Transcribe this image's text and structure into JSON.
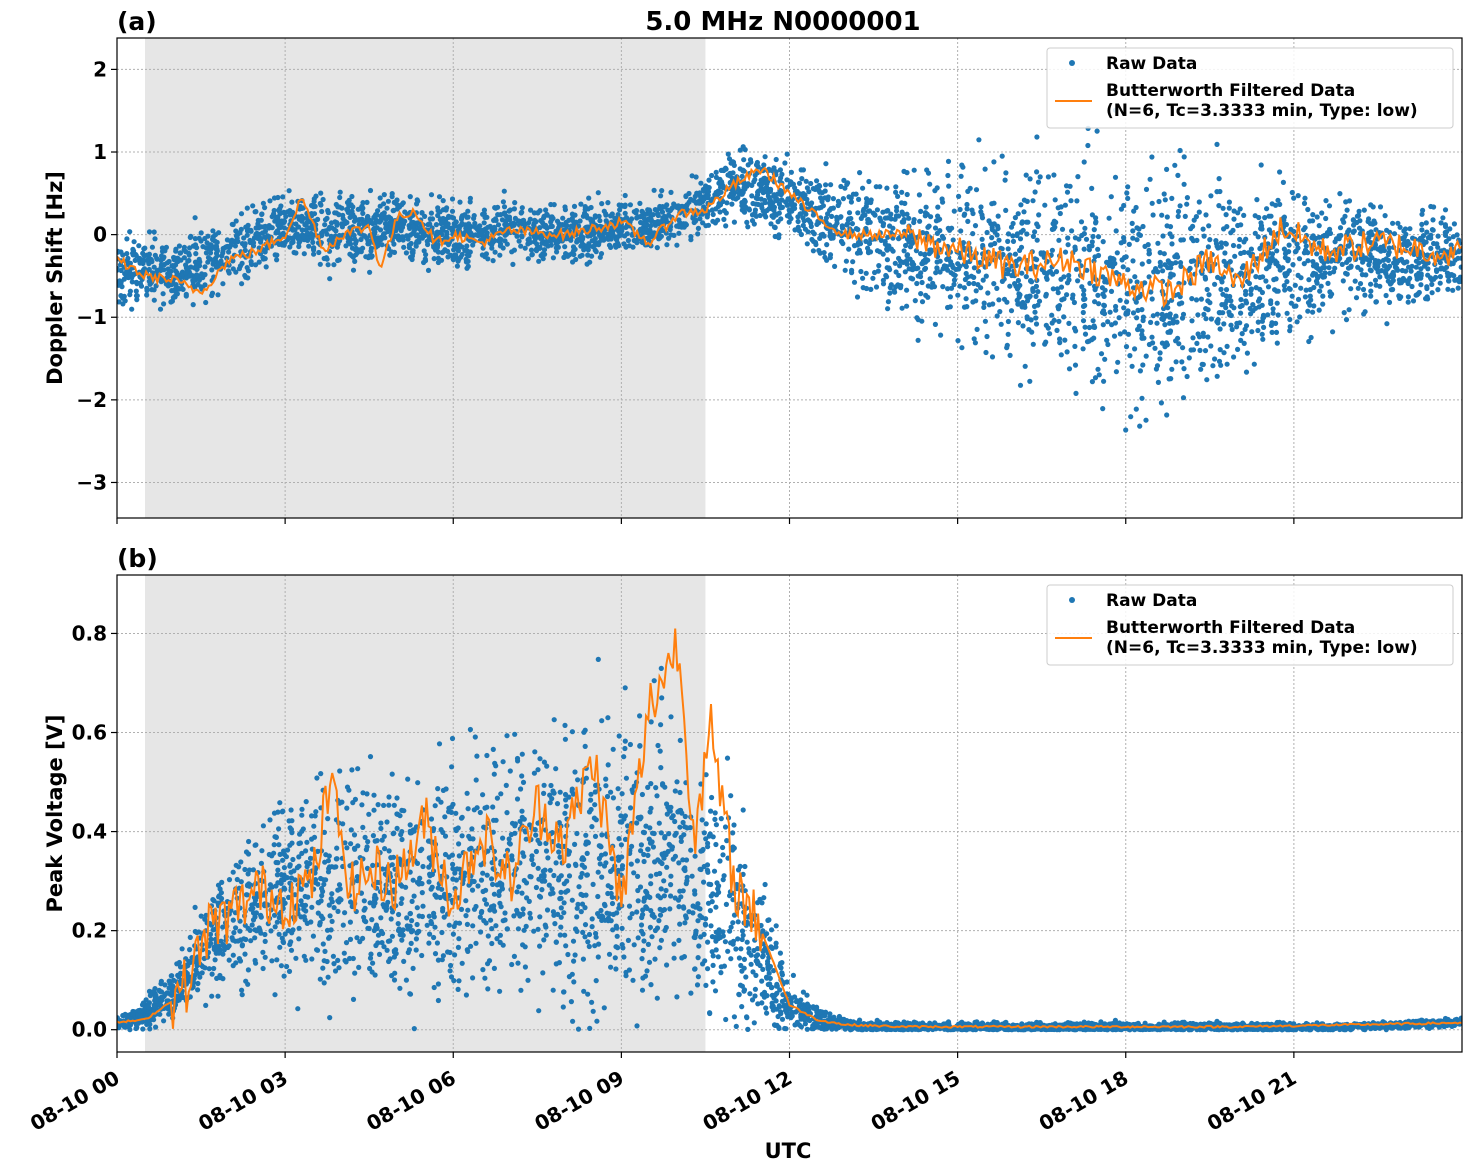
{
  "title": "5.0 MHz N0000001",
  "x_axis_label": "UTC",
  "colors": {
    "raw": "#1f77b4",
    "filtered": "#ff7f0e",
    "shade": "#e6e6e6"
  },
  "legend": {
    "raw": "Raw Data",
    "filtered_line1": "Butterworth Filtered Data",
    "filtered_line2": "(N=6, Tc=3.3333 min, Type: low)"
  },
  "chart_data": [
    {
      "panel_label": "(a)",
      "type": "scatter",
      "ylabel": "Doppler Shift [Hz]",
      "xlim_hours": [
        0,
        24
      ],
      "ylim": [
        -3.43,
        2.38
      ],
      "yticks": [
        2,
        1,
        0,
        -1,
        -2,
        -3
      ],
      "ytick_labels": [
        "2",
        "1",
        "0",
        "−1",
        "−2",
        "−3"
      ],
      "xticks_hours": [
        0,
        3,
        6,
        9,
        12,
        15,
        18,
        21
      ],
      "shaded_region_hours": [
        0.5,
        10.5
      ],
      "grid": true,
      "legend_position": "top-right",
      "series": [
        {
          "name": "Raw Data",
          "style": "points",
          "points": [
            [
              0,
              -0.4
            ],
            [
              1,
              -0.5
            ],
            [
              2,
              -0.2
            ],
            [
              3,
              0.1
            ],
            [
              4,
              0.0
            ],
            [
              5,
              0.1
            ],
            [
              6,
              0.0
            ],
            [
              7,
              0.05
            ],
            [
              8,
              0.0
            ],
            [
              9,
              0.1
            ],
            [
              10,
              0.2
            ],
            [
              11,
              0.6
            ],
            [
              12,
              0.4
            ],
            [
              13,
              0.1
            ],
            [
              14,
              -0.1
            ],
            [
              15,
              -0.2
            ],
            [
              16,
              -0.4
            ],
            [
              17,
              -0.5
            ],
            [
              18,
              -0.6
            ],
            [
              19,
              -0.6
            ],
            [
              20,
              -0.5
            ],
            [
              21,
              -0.3
            ],
            [
              22,
              -0.2
            ],
            [
              23,
              -0.3
            ],
            [
              24,
              -0.3
            ]
          ],
          "spread": [
            [
              0,
              0.4
            ],
            [
              2,
              0.4
            ],
            [
              4,
              0.4
            ],
            [
              6,
              0.35
            ],
            [
              8,
              0.3
            ],
            [
              10,
              0.3
            ],
            [
              11,
              0.4
            ],
            [
              12,
              0.4
            ],
            [
              13,
              0.6
            ],
            [
              15,
              1.0
            ],
            [
              17,
              1.2
            ],
            [
              18.5,
              1.5
            ],
            [
              20,
              1.1
            ],
            [
              22,
              0.7
            ],
            [
              24,
              0.5
            ]
          ]
        },
        {
          "name": "Butterworth Filtered Data\n(N=6, Tc=3.3333 min, Type: low)",
          "style": "line",
          "points": [
            [
              0,
              -0.3
            ],
            [
              0.5,
              -0.5
            ],
            [
              1,
              -0.55
            ],
            [
              1.5,
              -0.7
            ],
            [
              2,
              -0.3
            ],
            [
              2.5,
              -0.2
            ],
            [
              3,
              0.0
            ],
            [
              3.3,
              0.45
            ],
            [
              3.7,
              -0.2
            ],
            [
              4,
              0.0
            ],
            [
              4.5,
              0.1
            ],
            [
              4.7,
              -0.4
            ],
            [
              5,
              0.2
            ],
            [
              5.3,
              0.3
            ],
            [
              5.7,
              -0.1
            ],
            [
              6,
              0.0
            ],
            [
              6.5,
              -0.1
            ],
            [
              7,
              0.05
            ],
            [
              8,
              0.0
            ],
            [
              9,
              0.15
            ],
            [
              9.5,
              -0.1
            ],
            [
              10,
              0.25
            ],
            [
              10.5,
              0.3
            ],
            [
              11,
              0.6
            ],
            [
              11.5,
              0.8
            ],
            [
              12,
              0.5
            ],
            [
              12.5,
              0.2
            ],
            [
              13,
              0.0
            ],
            [
              14,
              0.0
            ],
            [
              15,
              -0.2
            ],
            [
              16,
              -0.4
            ],
            [
              17,
              -0.3
            ],
            [
              18,
              -0.6
            ],
            [
              18.8,
              -0.7
            ],
            [
              19.5,
              -0.3
            ],
            [
              20,
              -0.6
            ],
            [
              20.8,
              0.1
            ],
            [
              21.5,
              -0.2
            ],
            [
              22.5,
              -0.1
            ],
            [
              24,
              -0.25
            ]
          ]
        }
      ]
    },
    {
      "panel_label": "(b)",
      "type": "scatter",
      "ylabel": "Peak Voltage [V]",
      "xlim_hours": [
        0,
        24
      ],
      "ylim": [
        -0.045,
        0.918
      ],
      "yticks": [
        0.0,
        0.2,
        0.4,
        0.6,
        0.8
      ],
      "ytick_labels": [
        "0.0",
        "0.2",
        "0.4",
        "0.6",
        "0.8"
      ],
      "xticks_hours": [
        0,
        3,
        6,
        9,
        12,
        15,
        18,
        21
      ],
      "xtick_labels": [
        "08-10 00",
        "08-10 03",
        "08-10 06",
        "08-10 09",
        "08-10 12",
        "08-10 15",
        "08-10 18",
        "08-10 21"
      ],
      "shaded_region_hours": [
        0.5,
        10.5
      ],
      "grid": true,
      "legend_position": "top-right",
      "series": [
        {
          "name": "Raw Data",
          "style": "points",
          "points": [
            [
              0,
              0.015
            ],
            [
              0.5,
              0.03
            ],
            [
              1,
              0.07
            ],
            [
              1.5,
              0.15
            ],
            [
              2,
              0.22
            ],
            [
              3,
              0.28
            ],
            [
              4,
              0.3
            ],
            [
              5,
              0.28
            ],
            [
              6,
              0.3
            ],
            [
              7,
              0.33
            ],
            [
              8,
              0.32
            ],
            [
              9,
              0.35
            ],
            [
              10,
              0.35
            ],
            [
              10.5,
              0.3
            ],
            [
              11,
              0.25
            ],
            [
              11.5,
              0.15
            ],
            [
              12,
              0.05
            ],
            [
              12.5,
              0.02
            ],
            [
              13,
              0.01
            ],
            [
              14,
              0.005
            ],
            [
              18,
              0.005
            ],
            [
              22,
              0.005
            ],
            [
              24,
              0.015
            ]
          ],
          "spread": [
            [
              0,
              0.01
            ],
            [
              1,
              0.05
            ],
            [
              2,
              0.12
            ],
            [
              3,
              0.18
            ],
            [
              5,
              0.22
            ],
            [
              7,
              0.25
            ],
            [
              9,
              0.28
            ],
            [
              10.5,
              0.25
            ],
            [
              11.5,
              0.15
            ],
            [
              12,
              0.05
            ],
            [
              13,
              0.01
            ],
            [
              24,
              0.008
            ]
          ]
        },
        {
          "name": "Butterworth Filtered Data\n(N=6, Tc=3.3333 min, Type: low)",
          "style": "line",
          "points": [
            [
              0,
              0.015
            ],
            [
              0.5,
              0.02
            ],
            [
              1,
              0.06
            ],
            [
              1.3,
              0.1
            ],
            [
              1.6,
              0.2
            ],
            [
              2,
              0.23
            ],
            [
              2.5,
              0.28
            ],
            [
              3,
              0.26
            ],
            [
              3.5,
              0.3
            ],
            [
              3.8,
              0.5
            ],
            [
              4.2,
              0.28
            ],
            [
              4.5,
              0.32
            ],
            [
              5,
              0.3
            ],
            [
              5.5,
              0.42
            ],
            [
              6,
              0.26
            ],
            [
              6.5,
              0.4
            ],
            [
              7,
              0.3
            ],
            [
              7.5,
              0.45
            ],
            [
              8,
              0.38
            ],
            [
              8.5,
              0.55
            ],
            [
              9,
              0.25
            ],
            [
              9.5,
              0.65
            ],
            [
              10,
              0.78
            ],
            [
              10.3,
              0.4
            ],
            [
              10.6,
              0.6
            ],
            [
              11,
              0.3
            ],
            [
              11.5,
              0.2
            ],
            [
              12,
              0.05
            ],
            [
              12.5,
              0.02
            ],
            [
              13,
              0.01
            ],
            [
              14,
              0.006
            ],
            [
              20,
              0.006
            ],
            [
              24,
              0.014
            ]
          ]
        }
      ]
    }
  ]
}
